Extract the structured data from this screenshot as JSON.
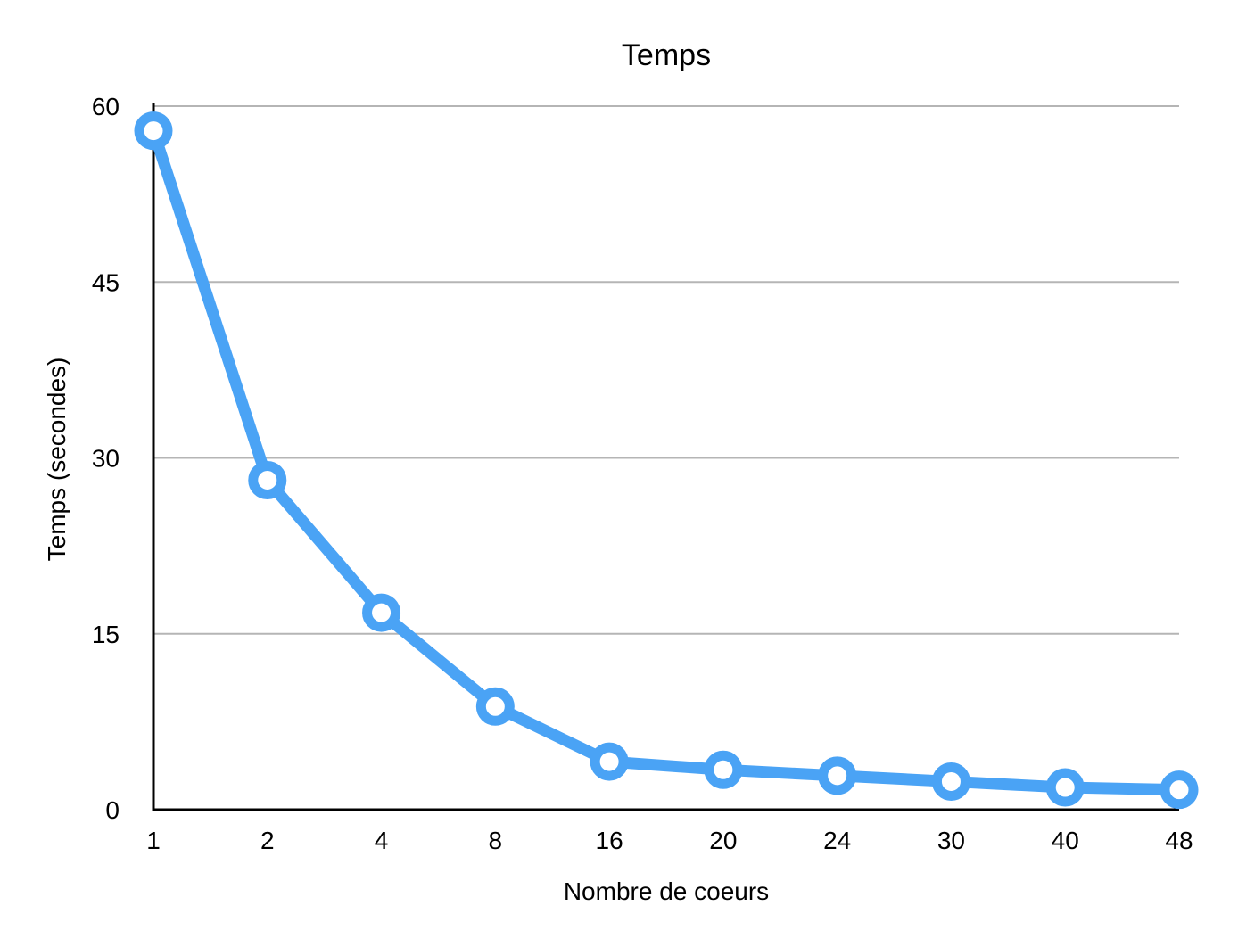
{
  "chart_data": {
    "type": "line",
    "title": "Temps",
    "xlabel": "Nombre de coeurs",
    "ylabel": "Temps (secondes)",
    "categories": [
      "1",
      "2",
      "4",
      "8",
      "16",
      "20",
      "24",
      "30",
      "40",
      "48"
    ],
    "series": [
      {
        "values": [
          57.9,
          28.1,
          16.8,
          8.8,
          4.1,
          3.4,
          2.9,
          2.4,
          1.9,
          1.7
        ],
        "color": "#4aa3f5",
        "marker": "circle-hollow"
      }
    ],
    "yticks": [
      "0",
      "15",
      "30",
      "45",
      "60"
    ],
    "ylim": [
      0,
      60
    ],
    "grid": "horizontal",
    "legend": "none"
  }
}
